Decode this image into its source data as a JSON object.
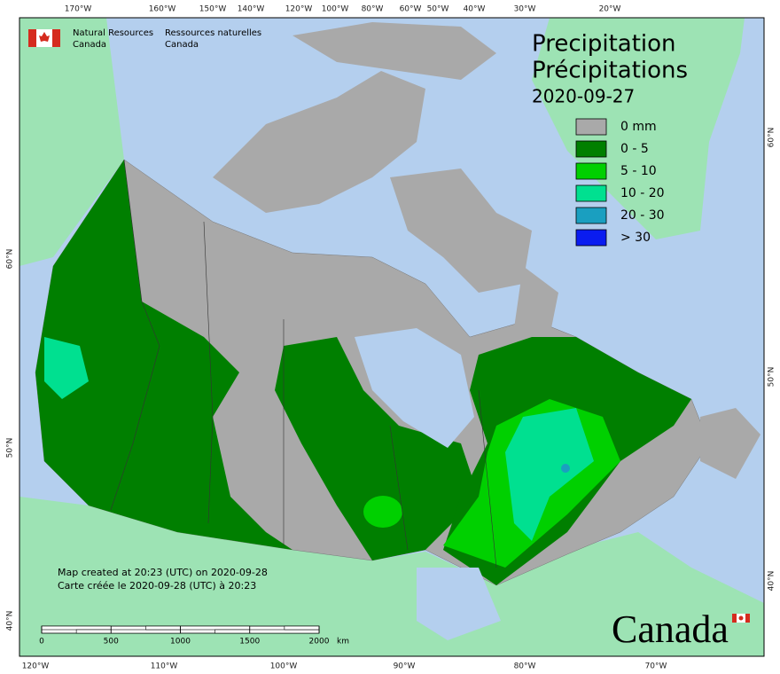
{
  "header": {
    "agency_en": [
      "Natural Resources",
      "Canada"
    ],
    "agency_fr": [
      "Ressources naturelles",
      "Canada"
    ]
  },
  "title": [
    "Precipitation",
    "Précipitations"
  ],
  "date": "2020-09-27",
  "legend": [
    {
      "label": "0 mm",
      "color": "#a9a9a9"
    },
    {
      "label": "0 - 5",
      "color": "#007f00"
    },
    {
      "label": "5 - 10",
      "color": "#00d000"
    },
    {
      "label": "10 - 20",
      "color": "#00e090"
    },
    {
      "label": "20 - 30",
      "color": "#1a9fc0"
    },
    {
      "label": "> 30",
      "color": "#0a1cf0"
    }
  ],
  "graticule": {
    "top": [
      "170°W",
      "160°W",
      "150°W",
      "140°W",
      "120°W",
      "100°W",
      "80°W",
      "60°W",
      "50°W",
      "40°W",
      "30°W",
      "20°W"
    ],
    "bottom": [
      "120°W",
      "110°W",
      "100°W",
      "90°W",
      "80°W",
      "70°W"
    ],
    "left": [
      "60°N",
      "50°N",
      "40°N"
    ],
    "right": [
      "60°N",
      "50°N",
      "40°N"
    ]
  },
  "notes": [
    "Map created at 20:23 (UTC) on 2020-09-28",
    "Carte créée le 2020-09-28 (UTC) à 20:23"
  ],
  "scale_bar": {
    "ticks": [
      0,
      500,
      1000,
      1500,
      2000
    ],
    "unit": "km"
  },
  "wordmark": "Canada"
}
